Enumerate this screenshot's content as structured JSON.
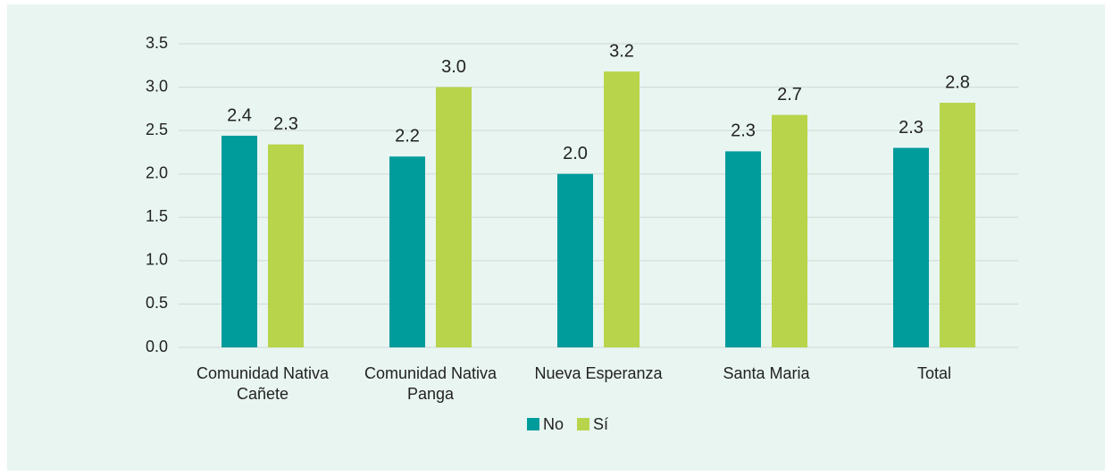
{
  "chart_data": {
    "type": "bar",
    "categories": [
      "Comunidad Nativa Cañete",
      "Comunidad Nativa Panga",
      "Nueva Esperanza",
      "Santa Maria",
      "Total"
    ],
    "series": [
      {
        "name": "No",
        "color": "#009b9b",
        "values": [
          2.44,
          2.2,
          2.0,
          2.26,
          2.3
        ],
        "value_labels": [
          "2.4",
          "2.2",
          "2.0",
          "2.3",
          "2.3"
        ]
      },
      {
        "name": "Sí",
        "color": "#b8d44a",
        "values": [
          2.34,
          3.0,
          3.18,
          2.68,
          2.82
        ],
        "value_labels": [
          "2.3",
          "3.0",
          "3.2",
          "2.7",
          "2.8"
        ]
      }
    ],
    "ylim": [
      0,
      3.5
    ],
    "yticks": [
      {
        "value": 0,
        "label": "0.0"
      },
      {
        "value": 0.5,
        "label": "0.5"
      },
      {
        "value": 1,
        "label": "1.0"
      },
      {
        "value": 1.5,
        "label": "1.5"
      },
      {
        "value": 2,
        "label": "2.0"
      },
      {
        "value": 2.5,
        "label": "2.5"
      },
      {
        "value": 3,
        "label": "3.0"
      },
      {
        "value": 3.5,
        "label": "3.5"
      }
    ],
    "grid": true,
    "legend": "bottom"
  }
}
